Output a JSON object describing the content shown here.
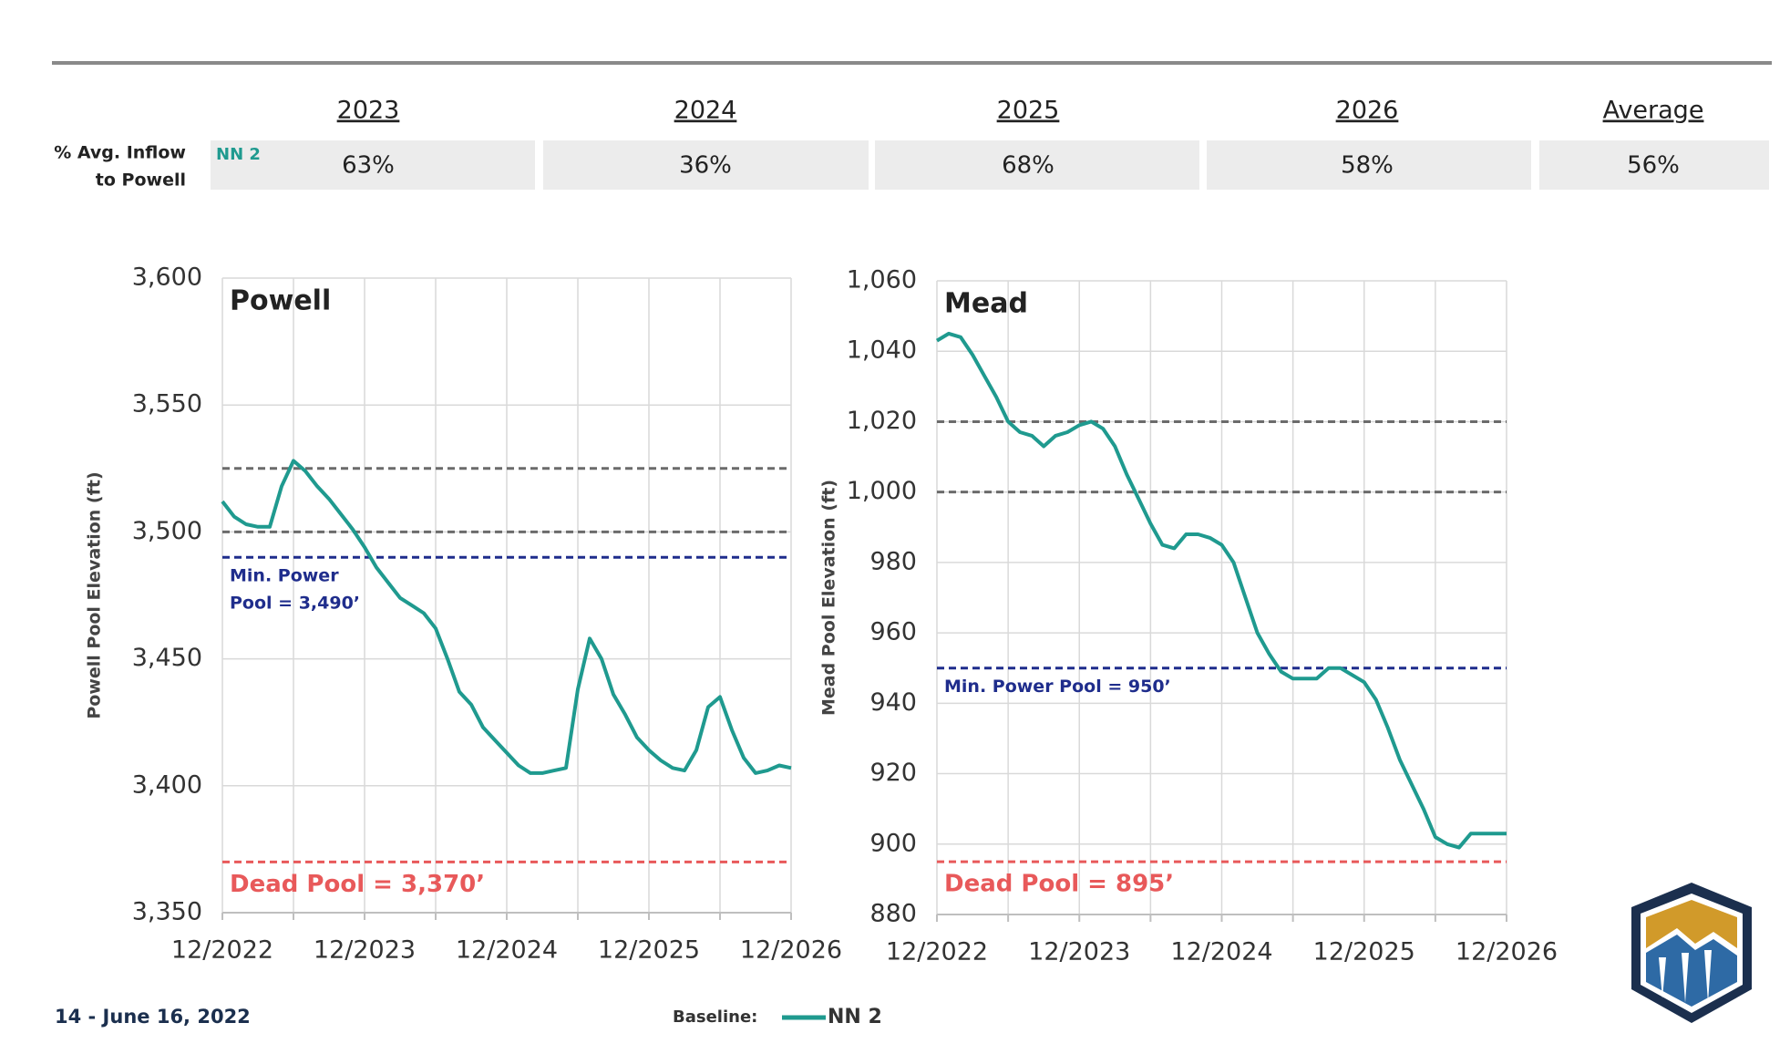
{
  "table": {
    "columns": [
      "2023",
      "2024",
      "2025",
      "2026",
      "Average"
    ],
    "row_label": [
      "% Avg. Inflow",
      "to Powell"
    ],
    "series": "NN 2",
    "values": [
      "63%",
      "36%",
      "68%",
      "58%",
      "56%"
    ]
  },
  "chart_data": [
    {
      "type": "line",
      "title": "Powell",
      "y_label": "Powell Pool Elevation (ft)",
      "x": [
        "12/2022",
        null,
        null,
        null,
        null,
        null,
        null,
        null,
        null,
        null,
        null,
        null,
        "12/2023",
        null,
        null,
        null,
        null,
        null,
        null,
        null,
        null,
        null,
        null,
        null,
        "12/2024",
        null,
        null,
        null,
        null,
        null,
        null,
        null,
        null,
        null,
        null,
        null,
        "12/2025",
        null,
        null,
        null,
        null,
        null,
        null,
        null,
        null,
        null,
        null,
        null,
        "12/2026"
      ],
      "series": [
        {
          "name": "NN 2",
          "color": "#1f9a8f",
          "values": [
            3512,
            3506,
            3503,
            3502,
            3502,
            3518,
            3528,
            3524,
            3518,
            3513,
            3507,
            3501,
            3494,
            3486,
            3480,
            3474,
            3471,
            3468,
            3462,
            3450,
            3437,
            3432,
            3423,
            3418,
            3413,
            3408,
            3405,
            3405,
            3406,
            3407,
            3438,
            3458,
            3450,
            3436,
            3428,
            3419,
            3414,
            3410,
            3407,
            3406,
            3414,
            3431,
            3435,
            3422,
            3411,
            3405,
            3406,
            3408,
            3407
          ]
        }
      ],
      "ylim": [
        3350,
        3600
      ],
      "yticks": [
        {
          "value": 3350,
          "label": "3,350"
        },
        {
          "value": 3400,
          "label": "3,400"
        },
        {
          "value": 3450,
          "label": "3,450"
        },
        {
          "value": 3500,
          "label": "3,500"
        },
        {
          "value": 3550,
          "label": "3,550"
        },
        {
          "value": 3600,
          "label": "3,600"
        }
      ],
      "grid": true,
      "reference_lines": [
        {
          "value": 3525,
          "color": "#6b6b6b"
        },
        {
          "value": 3500,
          "color": "#6b6b6b"
        },
        {
          "value": 3490,
          "color": "#1f2d8c",
          "label": [
            "Min. Power",
            "Pool = 3,490’"
          ]
        },
        {
          "value": 3370,
          "color": "#e8595a",
          "label": [
            "Dead Pool = 3,370’"
          ]
        }
      ]
    },
    {
      "type": "line",
      "title": "Mead",
      "y_label": "Mead Pool Elevation (ft)",
      "x": [
        "12/2022",
        null,
        null,
        null,
        null,
        null,
        null,
        null,
        null,
        null,
        null,
        null,
        "12/2023",
        null,
        null,
        null,
        null,
        null,
        null,
        null,
        null,
        null,
        null,
        null,
        "12/2024",
        null,
        null,
        null,
        null,
        null,
        null,
        null,
        null,
        null,
        null,
        null,
        "12/2025",
        null,
        null,
        null,
        null,
        null,
        null,
        null,
        null,
        null,
        null,
        null,
        "12/2026"
      ],
      "series": [
        {
          "name": "NN 2",
          "color": "#1f9a8f",
          "values": [
            1043,
            1045,
            1044,
            1039,
            1033,
            1027,
            1020,
            1017,
            1016,
            1013,
            1016,
            1017,
            1019,
            1020,
            1018,
            1013,
            1005,
            998,
            991,
            985,
            984,
            988,
            988,
            987,
            985,
            980,
            970,
            960,
            954,
            949,
            947,
            947,
            947,
            950,
            950,
            948,
            946,
            941,
            933,
            924,
            917,
            910,
            902,
            900,
            899,
            903,
            903,
            903,
            903
          ]
        }
      ],
      "ylim": [
        880,
        1060
      ],
      "yticks": [
        880,
        900,
        920,
        940,
        960,
        980,
        {
          "value": 1000,
          "label": "1,000"
        },
        {
          "value": 1020,
          "label": "1,020"
        },
        {
          "value": 1040,
          "label": "1,040"
        },
        {
          "value": 1060,
          "label": "1,060"
        }
      ],
      "grid": true,
      "reference_lines": [
        {
          "value": 1020,
          "color": "#6b6b6b"
        },
        {
          "value": 1000,
          "color": "#6b6b6b"
        },
        {
          "value": 950,
          "color": "#1f2d8c",
          "label": [
            "Min. Power Pool = 950’"
          ]
        },
        {
          "value": 895,
          "color": "#e8595a",
          "label": [
            "Dead Pool = 895’"
          ]
        }
      ]
    }
  ],
  "legend": {
    "title": "Baseline:"
  },
  "footer": "14 - June 16, 2022"
}
